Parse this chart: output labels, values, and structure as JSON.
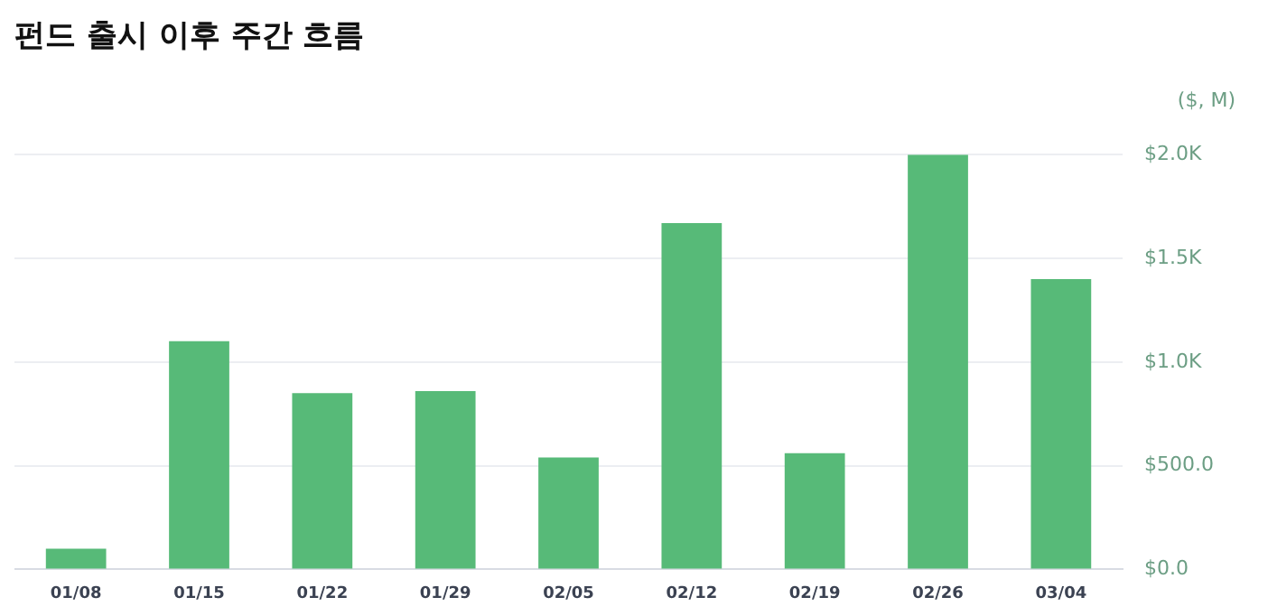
{
  "chart_data": {
    "type": "bar",
    "title": "펀드 출시 이후 주간 흐름",
    "ylabel": "($, M)",
    "categories": [
      "01/08",
      "01/15",
      "01/22",
      "01/29",
      "02/05",
      "02/12",
      "02/19",
      "02/26",
      "03/04"
    ],
    "values": [
      100,
      1100,
      850,
      860,
      540,
      1670,
      560,
      2000,
      1400
    ],
    "color": "#57ba78",
    "ylim": [
      0,
      2000
    ],
    "yticks": [
      {
        "value": 0,
        "label": "$0.0"
      },
      {
        "value": 500,
        "label": "$500.0"
      },
      {
        "value": 1000,
        "label": "$1.0K"
      },
      {
        "value": 1500,
        "label": "$1.5K"
      },
      {
        "value": 2000,
        "label": "$2.0K"
      }
    ],
    "grid": "y",
    "legend": false
  }
}
